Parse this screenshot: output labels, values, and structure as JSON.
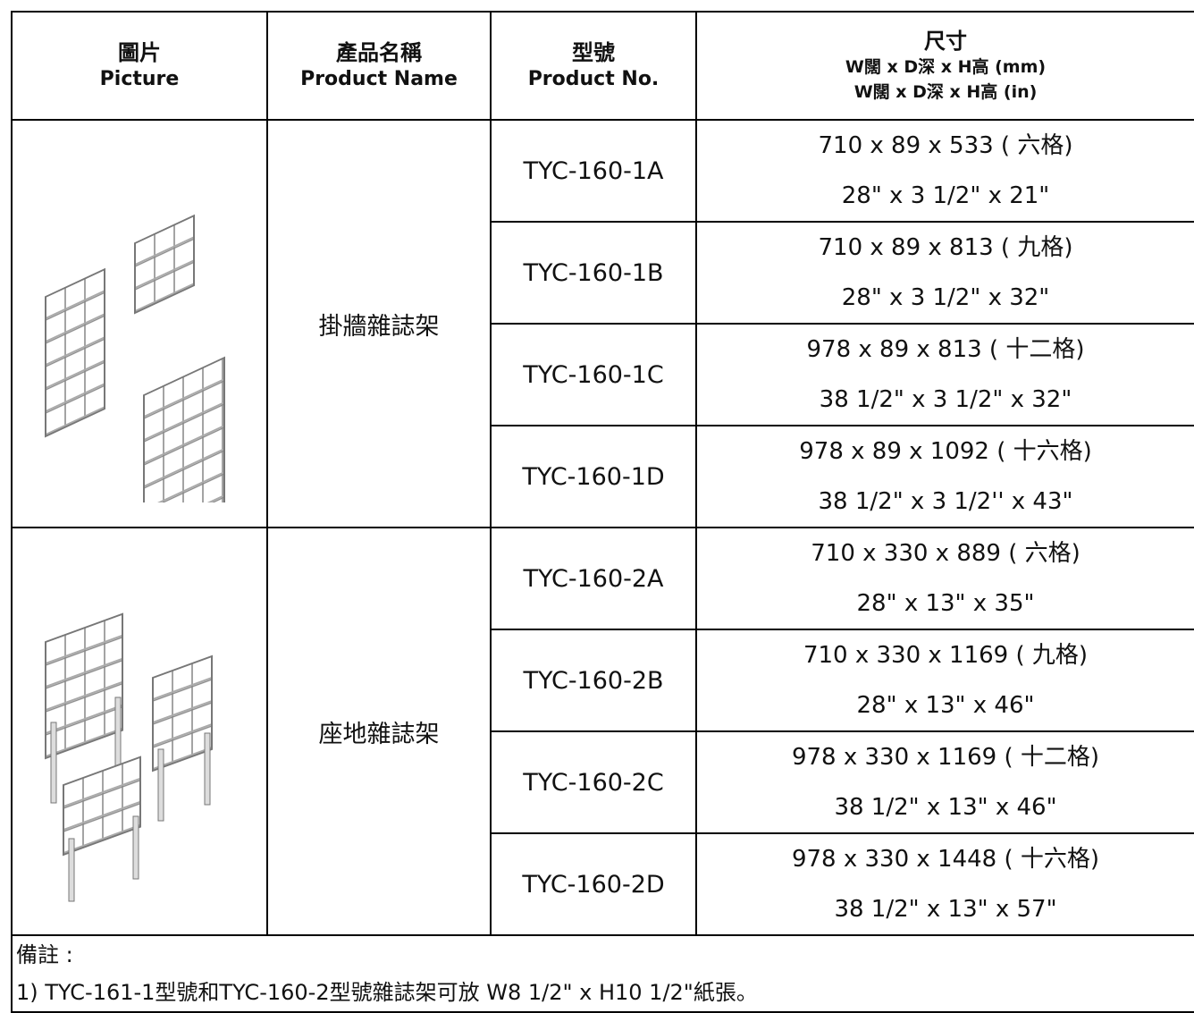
{
  "table": {
    "header": {
      "picture": {
        "zh": "圖片",
        "en": "Picture"
      },
      "name": {
        "zh": "產品名稱",
        "en": "Product Name"
      },
      "model": {
        "zh": "型號",
        "en": "Product No."
      },
      "size": {
        "zh": "尺寸",
        "mm": "W闊 x D深 x H高 (mm)",
        "in": "W闊 x D深 x H高 (in)"
      }
    },
    "groups": [
      {
        "name": "掛牆雜誌架",
        "rows": [
          {
            "model": "TYC-160-1A",
            "mm": "710 x 89 x 533 ( 六格)",
            "in": "28\" x 3 1/2\" x 21\""
          },
          {
            "model": "TYC-160-1B",
            "mm": "710 x 89 x 813 ( 九格)",
            "in": "28\" x 3 1/2\" x 32\""
          },
          {
            "model": "TYC-160-1C",
            "mm": "978 x 89 x 813 ( 十二格)",
            "in": "38 1/2\" x 3 1/2\" x 32\""
          },
          {
            "model": "TYC-160-1D",
            "mm": "978 x 89 x 1092 ( 十六格)",
            "in": "38 1/2\" x 3 1/2'' x 43\""
          }
        ]
      },
      {
        "name": "座地雜誌架",
        "rows": [
          {
            "model": "TYC-160-2A",
            "mm": "710 x 330 x 889 ( 六格)",
            "in": "28\" x 13\" x 35\""
          },
          {
            "model": "TYC-160-2B",
            "mm": "710 x 330 x 1169 ( 九格)",
            "in": "28\" x 13\" x 46\""
          },
          {
            "model": "TYC-160-2C",
            "mm": "978 x 330 x 1169 ( 十二格)",
            "in": "38 1/2\" x 13\" x 46\""
          },
          {
            "model": "TYC-160-2D",
            "mm": "978 x 330 x 1448 ( 十六格)",
            "in": "38 1/2\" x 13\" x 57\""
          }
        ]
      }
    ],
    "notes": {
      "label": "備註 :",
      "lines": [
        "1) TYC-161-1型號和TYC-160-2型號雜誌架可放 W8 1/2\" x H10 1/2\"紙張。"
      ]
    }
  }
}
